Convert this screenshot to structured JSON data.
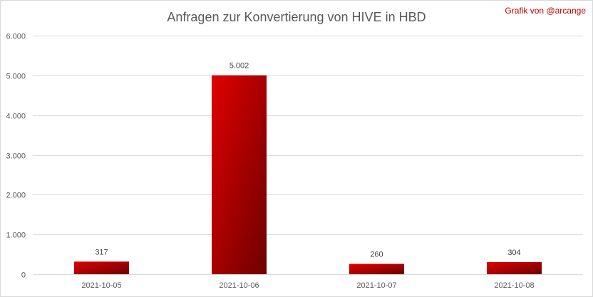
{
  "title": "Anfragen zur Konvertierung von HIVE in HBD",
  "credit": "Grafik von @arcange",
  "colors": {
    "bar_light": "#e00000",
    "bar_dark": "#6e0000",
    "grid": "#d9d9d9",
    "text": "#595959",
    "credit": "#c00000"
  },
  "chart_data": {
    "type": "bar",
    "title": "Anfragen zur Konvertierung von HIVE in HBD",
    "categories": [
      "2021-10-05",
      "2021-10-06",
      "2021-10-07",
      "2021-10-08"
    ],
    "values": [
      317,
      5002,
      260,
      304
    ],
    "value_labels": [
      "317",
      "5.002",
      "260",
      "304"
    ],
    "xlabel": "",
    "ylabel": "",
    "ylim": [
      0,
      6000
    ],
    "yticks": [
      0,
      1000,
      2000,
      3000,
      4000,
      5000,
      6000
    ],
    "ytick_labels": [
      "0",
      "1.000",
      "2.000",
      "3.000",
      "4.000",
      "5.000",
      "6.000"
    ],
    "grid": true,
    "legend": "none"
  }
}
